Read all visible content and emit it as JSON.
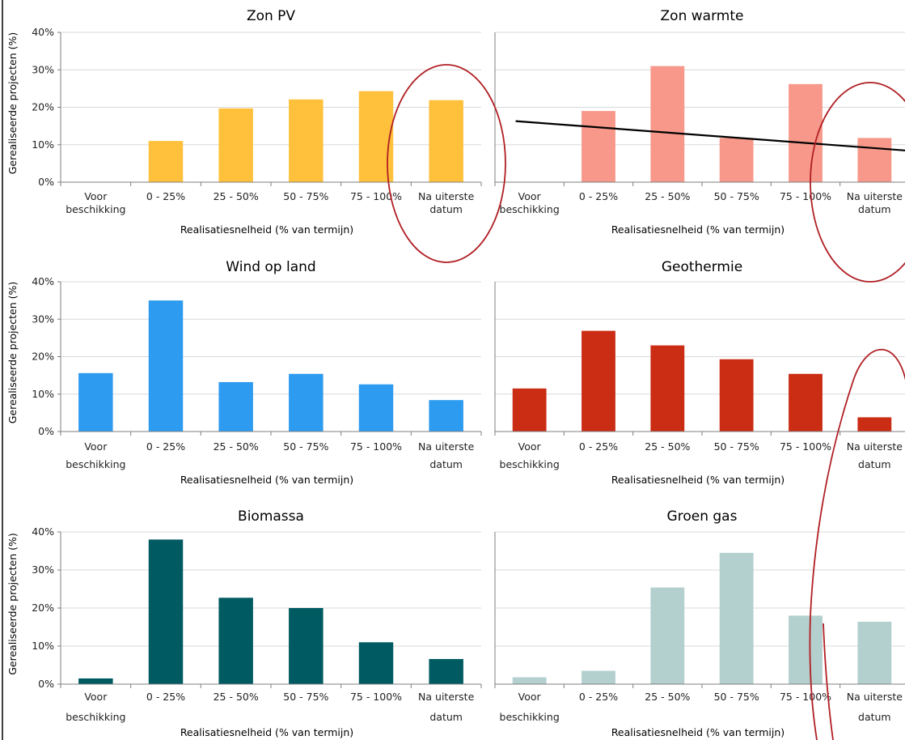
{
  "shared": {
    "categories": [
      [
        "Voor",
        "beschikking"
      ],
      [
        "0 - 25%"
      ],
      [
        "25 - 50%"
      ],
      [
        "50 - 75%"
      ],
      [
        "75 - 100%"
      ],
      [
        "Na uiterste",
        "datum"
      ]
    ],
    "y_ticks": [
      "0%",
      "10%",
      "20%",
      "30%",
      "40%"
    ],
    "xlabel": "Realisatiesnelheid (% van termijn)",
    "ylabel": "Gerealiseerde projecten (%)"
  },
  "chart_data": [
    {
      "type": "bar",
      "title": "Zon PV",
      "ylim": [
        0,
        40
      ],
      "unit": "%",
      "color": "#FFC13B",
      "values": [
        0,
        11,
        19.7,
        22.1,
        24.3,
        21.9
      ],
      "grid": true
    },
    {
      "type": "bar",
      "title": "Zon warmte",
      "ylim": [
        0,
        40
      ],
      "unit": "%",
      "color": "#F7988A",
      "values": [
        0,
        19,
        31,
        11.8,
        26.2,
        11.8
      ],
      "grid": true
    },
    {
      "type": "bar",
      "title": "Wind op land",
      "ylim": [
        0,
        40
      ],
      "unit": "%",
      "color": "#2D9BF0",
      "values": [
        15.6,
        35,
        13.2,
        15.4,
        12.6,
        8.4
      ],
      "grid": true
    },
    {
      "type": "bar",
      "title": "Geothermie",
      "ylim": [
        0,
        40
      ],
      "unit": "%",
      "color": "#CA2C14",
      "values": [
        11.5,
        26.9,
        23,
        19.3,
        15.4,
        3.8
      ],
      "grid": true
    },
    {
      "type": "bar",
      "title": "Biomassa",
      "ylim": [
        0,
        40
      ],
      "unit": "%",
      "color": "#005A62",
      "values": [
        1.5,
        38,
        22.7,
        20,
        11,
        6.6
      ],
      "grid": true
    },
    {
      "type": "bar",
      "title": "Groen gas",
      "ylim": [
        0,
        40
      ],
      "unit": "%",
      "color": "#B3CFCE",
      "values": [
        1.8,
        3.5,
        25.4,
        34.5,
        18,
        16.4
      ],
      "grid": true
    }
  ],
  "annotations": {
    "trend_line": {
      "panel": 1,
      "from": {
        "category_index": -0.2,
        "value": 16.3
      },
      "to": {
        "category_index": 6.0,
        "value": 7.7
      },
      "color": "#000000"
    },
    "ellipse_color": "#B01E23"
  }
}
